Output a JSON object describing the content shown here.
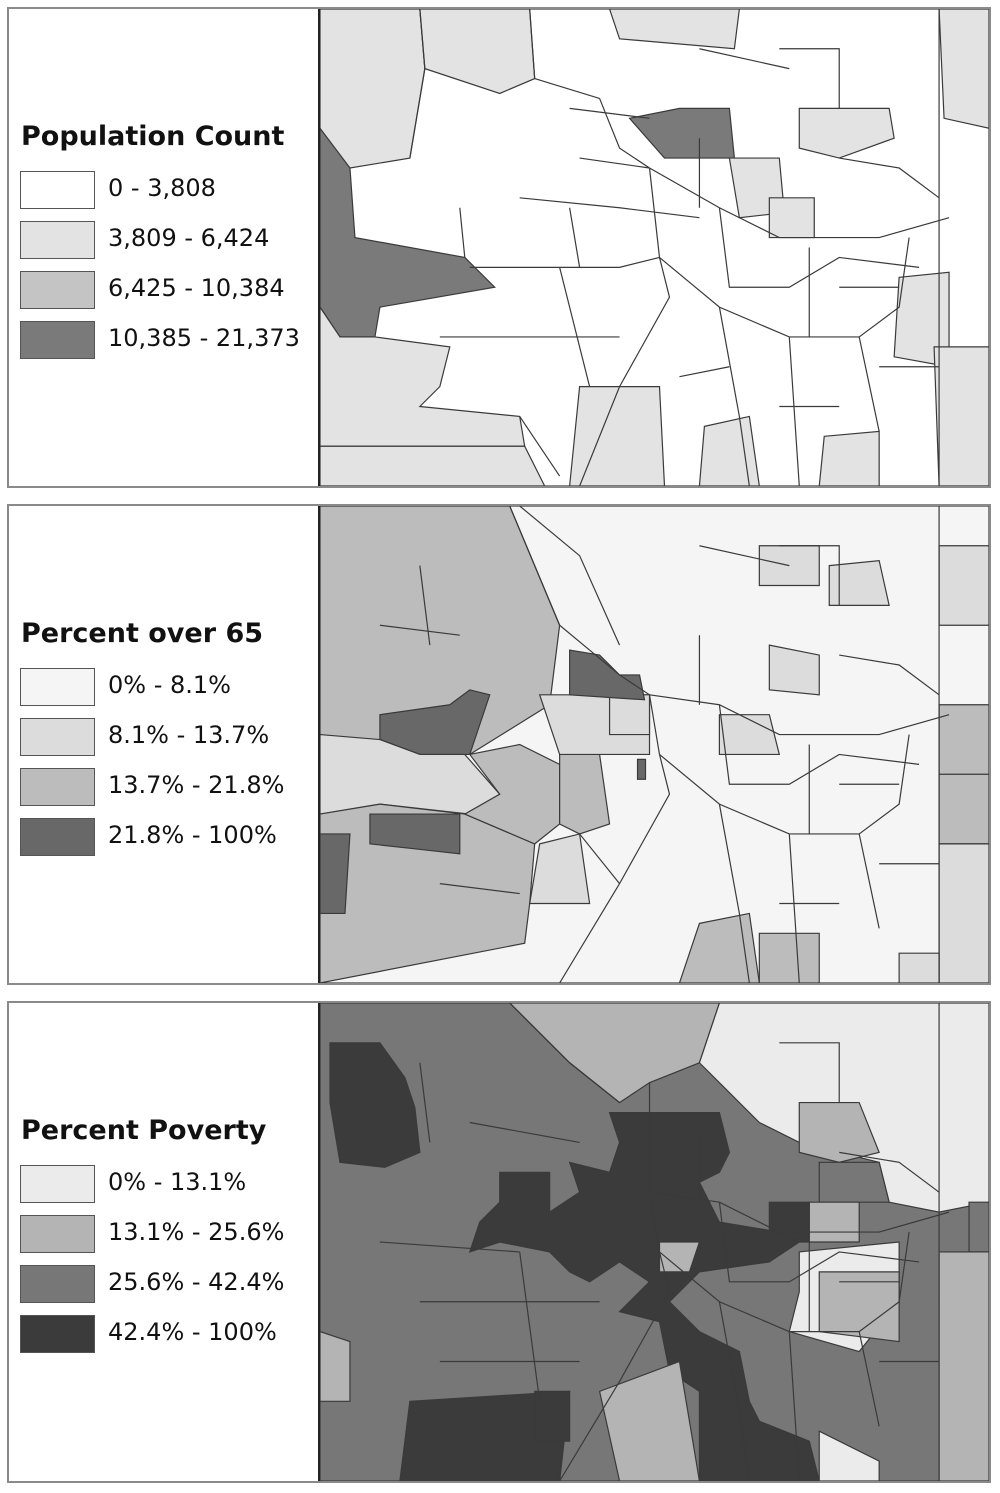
{
  "panels": [
    {
      "title": "Population Count",
      "classes": [
        {
          "label": "0 - 3,808",
          "color": "#ffffff"
        },
        {
          "label": "3,809 - 6,424",
          "color": "#e3e3e3"
        },
        {
          "label": "6,425 - 10,384",
          "color": "#c4c4c4"
        },
        {
          "label": "10,385 - 21,373",
          "color": "#7a7a7a"
        }
      ]
    },
    {
      "title": "Percent over 65",
      "classes": [
        {
          "label": "0% - 8.1%",
          "color": "#f5f5f5"
        },
        {
          "label": "8.1% - 13.7%",
          "color": "#dcdcdc"
        },
        {
          "label": "13.7% - 21.8%",
          "color": "#bcbcbc"
        },
        {
          "label": "21.8% - 100%",
          "color": "#686868"
        }
      ]
    },
    {
      "title": "Percent Poverty",
      "classes": [
        {
          "label": "0% - 13.1%",
          "color": "#ebebeb"
        },
        {
          "label": "13.1% - 25.6%",
          "color": "#b4b4b4"
        },
        {
          "label": "25.6% - 42.4%",
          "color": "#777777"
        },
        {
          "label": "42.4% - 100%",
          "color": "#3b3b3b"
        }
      ]
    }
  ]
}
